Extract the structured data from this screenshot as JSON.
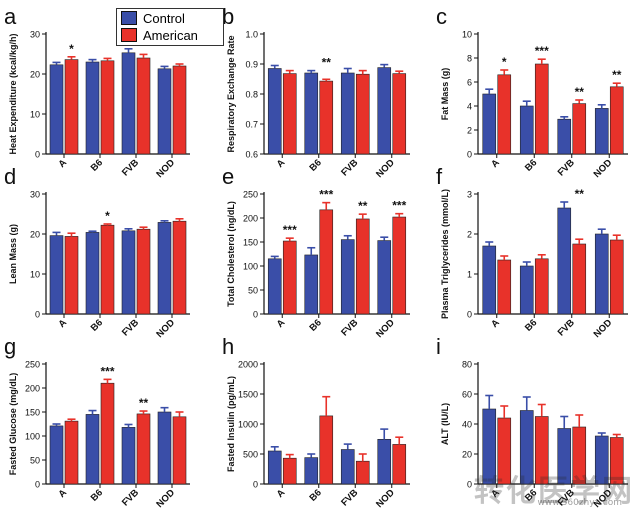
{
  "colors": {
    "control": "#3a4ea8",
    "american": "#e8322a"
  },
  "legend": {
    "control": "Control",
    "american": "American"
  },
  "watermark": {
    "main": "转化医学网",
    "sub": "www.360zhyx.com"
  },
  "chart_data": [
    {
      "id": "a",
      "panel_label": "a",
      "type": "bar",
      "ylabel": "Heat Expenditure (kcal/kg/h)",
      "ylim": [
        0,
        30
      ],
      "yticks": [
        "0",
        "10",
        "20",
        "30"
      ],
      "ytick_values": [
        0,
        10,
        20,
        30
      ],
      "categories": [
        "A",
        "B6",
        "FVB",
        "NOD"
      ],
      "series": [
        {
          "name": "Control",
          "values": [
            22.3,
            23.0,
            25.3,
            21.3
          ],
          "errors": [
            0.6,
            0.6,
            1.0,
            0.6
          ]
        },
        {
          "name": "American",
          "values": [
            23.6,
            23.3,
            24.0,
            22.0
          ],
          "errors": [
            0.7,
            0.6,
            0.9,
            0.5
          ]
        }
      ],
      "annotations": [
        {
          "category": "A",
          "text": "*"
        }
      ]
    },
    {
      "id": "b",
      "panel_label": "b",
      "type": "bar",
      "ylabel": "Respiratory Exchange Rate",
      "ylim": [
        0.6,
        1.0
      ],
      "yticks": [
        "0.6",
        "0.7",
        "0.8",
        "0.9",
        "1.0"
      ],
      "ytick_values": [
        0.6,
        0.7,
        0.8,
        0.9,
        1.0
      ],
      "categories": [
        "A",
        "B6",
        "FVB",
        "NOD"
      ],
      "series": [
        {
          "name": "Control",
          "values": [
            0.885,
            0.87,
            0.87,
            0.888
          ],
          "errors": [
            0.01,
            0.008,
            0.015,
            0.01
          ]
        },
        {
          "name": "American",
          "values": [
            0.868,
            0.843,
            0.866,
            0.868
          ],
          "errors": [
            0.01,
            0.006,
            0.012,
            0.008
          ]
        }
      ],
      "annotations": [
        {
          "category": "B6",
          "text": "**"
        }
      ]
    },
    {
      "id": "c",
      "panel_label": "c",
      "type": "bar",
      "ylabel": "Fat Mass (g)",
      "ylim": [
        0,
        10
      ],
      "yticks": [
        "0",
        "2",
        "4",
        "6",
        "8",
        "10"
      ],
      "ytick_values": [
        0,
        2,
        4,
        6,
        8,
        10
      ],
      "categories": [
        "A",
        "B6",
        "FVB",
        "NOD"
      ],
      "series": [
        {
          "name": "Control",
          "values": [
            5.0,
            4.0,
            2.9,
            3.8
          ],
          "errors": [
            0.4,
            0.4,
            0.2,
            0.3
          ]
        },
        {
          "name": "American",
          "values": [
            6.6,
            7.5,
            4.2,
            5.6
          ],
          "errors": [
            0.4,
            0.4,
            0.3,
            0.3
          ]
        }
      ],
      "annotations": [
        {
          "category": "A",
          "text": "*"
        },
        {
          "category": "B6",
          "text": "***"
        },
        {
          "category": "FVB",
          "text": "**"
        },
        {
          "category": "NOD",
          "text": "**"
        }
      ]
    },
    {
      "id": "d",
      "panel_label": "d",
      "type": "bar",
      "ylabel": "Lean Mass (g)",
      "ylim": [
        0,
        30
      ],
      "yticks": [
        "0",
        "10",
        "20",
        "30"
      ],
      "ytick_values": [
        0,
        10,
        20,
        30
      ],
      "categories": [
        "A",
        "B6",
        "FVB",
        "NOD"
      ],
      "series": [
        {
          "name": "Control",
          "values": [
            19.6,
            20.4,
            20.8,
            22.9
          ],
          "errors": [
            0.8,
            0.3,
            0.5,
            0.4
          ]
        },
        {
          "name": "American",
          "values": [
            19.4,
            22.2,
            21.2,
            23.2
          ],
          "errors": [
            0.8,
            0.3,
            0.5,
            0.6
          ]
        }
      ],
      "annotations": [
        {
          "category": "B6",
          "text": "*"
        }
      ]
    },
    {
      "id": "e",
      "panel_label": "e",
      "type": "bar",
      "ylabel": "Total Cholesterol (ng/dL)",
      "ylim": [
        0,
        250
      ],
      "yticks": [
        "0",
        "50",
        "100",
        "150",
        "200",
        "250"
      ],
      "ytick_values": [
        0,
        50,
        100,
        150,
        200,
        250
      ],
      "categories": [
        "A",
        "B6",
        "FVB",
        "NOD"
      ],
      "series": [
        {
          "name": "Control",
          "values": [
            115,
            123,
            155,
            153
          ],
          "errors": [
            5,
            15,
            8,
            7
          ]
        },
        {
          "name": "American",
          "values": [
            152,
            217,
            198,
            202
          ],
          "errors": [
            6,
            15,
            10,
            7
          ]
        }
      ],
      "annotations": [
        {
          "category": "A",
          "text": "***"
        },
        {
          "category": "B6",
          "text": "***"
        },
        {
          "category": "FVB",
          "text": "**"
        },
        {
          "category": "NOD",
          "text": "***"
        }
      ]
    },
    {
      "id": "f",
      "panel_label": "f",
      "type": "bar",
      "ylabel": "Plasma Triglycerides (mmol/L)",
      "ylim": [
        0,
        3
      ],
      "yticks": [
        "0",
        "1",
        "2",
        "3"
      ],
      "ytick_values": [
        0,
        1,
        2,
        3
      ],
      "categories": [
        "A",
        "B6",
        "FVB",
        "NOD"
      ],
      "series": [
        {
          "name": "Control",
          "values": [
            1.7,
            1.2,
            2.65,
            2.0
          ],
          "errors": [
            0.1,
            0.1,
            0.15,
            0.12
          ]
        },
        {
          "name": "American",
          "values": [
            1.35,
            1.38,
            1.75,
            1.85
          ],
          "errors": [
            0.1,
            0.1,
            0.12,
            0.12
          ]
        }
      ],
      "annotations": [
        {
          "category": "FVB",
          "text": "**"
        }
      ]
    },
    {
      "id": "g",
      "panel_label": "g",
      "type": "bar",
      "ylabel": "Fasted Glucose (mg/dL)",
      "ylim": [
        0,
        250
      ],
      "yticks": [
        "0",
        "50",
        "100",
        "150",
        "200",
        "250"
      ],
      "ytick_values": [
        0,
        50,
        100,
        150,
        200,
        250
      ],
      "categories": [
        "A",
        "B6",
        "FVB",
        "NOD"
      ],
      "series": [
        {
          "name": "Control",
          "values": [
            121,
            145,
            118,
            150
          ],
          "errors": [
            4,
            8,
            6,
            9
          ]
        },
        {
          "name": "American",
          "values": [
            131,
            210,
            146,
            140
          ],
          "errors": [
            4,
            8,
            6,
            10
          ]
        }
      ],
      "annotations": [
        {
          "category": "B6",
          "text": "***"
        },
        {
          "category": "FVB",
          "text": "**"
        }
      ]
    },
    {
      "id": "h",
      "panel_label": "h",
      "type": "bar",
      "ylabel": "Fasted Insulin (pg/mL)",
      "ylim": [
        0,
        2000
      ],
      "yticks": [
        "0",
        "500",
        "1000",
        "1500",
        "2000"
      ],
      "ytick_values": [
        0,
        500,
        1000,
        1500,
        2000
      ],
      "categories": [
        "A",
        "B6",
        "FVB",
        "NOD"
      ],
      "series": [
        {
          "name": "Control",
          "values": [
            550,
            440,
            575,
            745
          ],
          "errors": [
            70,
            60,
            90,
            170
          ]
        },
        {
          "name": "American",
          "values": [
            430,
            1135,
            380,
            660
          ],
          "errors": [
            60,
            320,
            120,
            120
          ]
        }
      ],
      "annotations": []
    },
    {
      "id": "i",
      "panel_label": "i",
      "type": "bar",
      "ylabel": "ALT (IU/L)",
      "ylim": [
        0,
        80
      ],
      "yticks": [
        "0",
        "20",
        "40",
        "60",
        "80"
      ],
      "ytick_values": [
        0,
        20,
        40,
        60,
        80
      ],
      "categories": [
        "A",
        "B6",
        "FVB",
        "NOD"
      ],
      "series": [
        {
          "name": "Control",
          "values": [
            50,
            49,
            37,
            32
          ],
          "errors": [
            9,
            9,
            8,
            2
          ]
        },
        {
          "name": "American",
          "values": [
            44,
            45,
            38,
            31
          ],
          "errors": [
            8,
            8,
            8,
            2
          ]
        }
      ],
      "annotations": []
    }
  ]
}
